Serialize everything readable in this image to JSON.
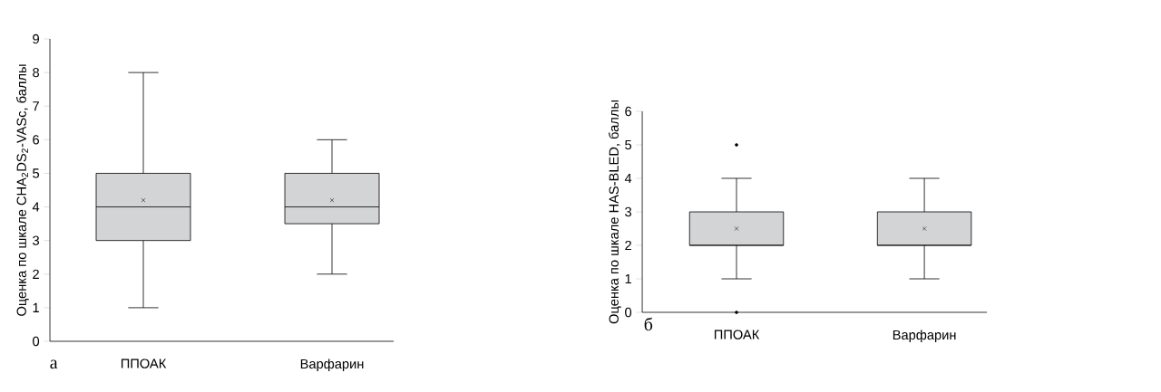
{
  "chart_data": [
    {
      "type": "box",
      "ylabel": "Оценка по шкале CHA$_{2}$DS$_{2}$-VASc, баллы",
      "categories": [
        "ППОАК",
        "Варфарин"
      ],
      "ylim": [
        0,
        9
      ],
      "yticks": [
        0,
        1,
        2,
        3,
        4,
        5,
        6,
        7,
        8,
        9
      ],
      "annotations": [
        "а"
      ],
      "series": [
        {
          "color": "#d3d4d6",
          "boxes": [
            {
              "low": 1,
              "q1": 3,
              "median": 4,
              "q3": 5,
              "high": 8,
              "mean": 4.2
            },
            {
              "low": 2,
              "q1": 3.5,
              "median": 4,
              "q3": 5,
              "high": 6,
              "mean": 4.2
            }
          ]
        }
      ]
    },
    {
      "type": "box",
      "ylabel": "Оценка по шкале HAS-BLED, баллы",
      "categories": [
        "ППОАК",
        "Варфарин"
      ],
      "ylim": [
        0,
        6
      ],
      "yticks": [
        0,
        1,
        2,
        3,
        4,
        5,
        6
      ],
      "annotations": [
        "б"
      ],
      "series": [
        {
          "color": "#d3d4d6",
          "boxes": [
            {
              "low": 1,
              "q1": 2,
              "median": 2,
              "q3": 3,
              "high": 4,
              "mean": 2.5,
              "outliers": [
                5,
                0
              ]
            },
            {
              "low": 1,
              "q1": 2,
              "median": 2,
              "q3": 3,
              "high": 4,
              "mean": 2.5
            }
          ]
        }
      ]
    }
  ]
}
